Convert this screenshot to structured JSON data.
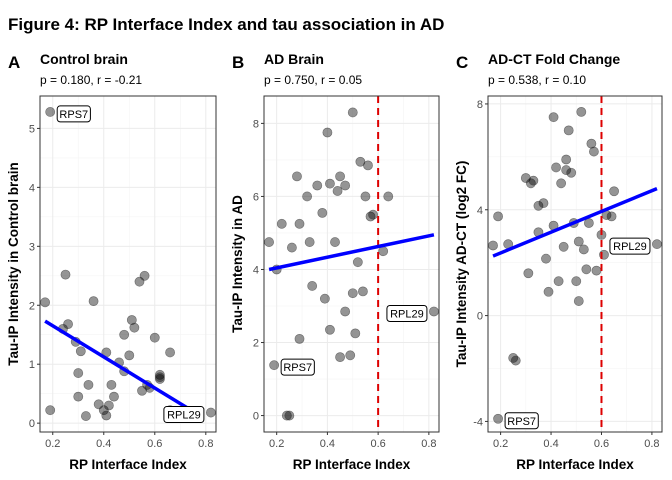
{
  "figure_title": "Figure 4: RP Interface Index and tau association in AD",
  "colors": {
    "point_fill": "#000000",
    "point_opacity": 0.42,
    "fit_line": "#0000ff",
    "threshold_line": "#dd0000",
    "grid": "#ebebeb",
    "panel_border": "#333333"
  },
  "chart_data": [
    {
      "type": "scatter",
      "letter": "A",
      "title": "Control brain",
      "subtitle": "p = 0.180, r = -0.21",
      "xlabel": "RP Interface Index",
      "ylabel": "Tau-IP Intensity in Control brain",
      "xlim": [
        0.15,
        0.84
      ],
      "ylim": [
        -0.15,
        5.55
      ],
      "xticks": [
        0.2,
        0.4,
        0.6,
        0.8
      ],
      "xtick_labels": [
        "0.2",
        "0.4",
        "0.6",
        "0.8"
      ],
      "yticks": [
        0,
        1,
        2,
        3,
        4,
        5
      ],
      "ytick_labels": [
        "0",
        "1",
        "2",
        "3",
        "4",
        "5"
      ],
      "threshold_x": null,
      "fit_line": {
        "x": [
          0.17,
          0.75
        ],
        "y": [
          1.73,
          0.2
        ]
      },
      "points": [
        {
          "x": 0.19,
          "y": 5.28
        },
        {
          "x": 0.17,
          "y": 2.05
        },
        {
          "x": 0.19,
          "y": 0.22
        },
        {
          "x": 0.25,
          "y": 2.52
        },
        {
          "x": 0.24,
          "y": 1.6
        },
        {
          "x": 0.26,
          "y": 1.68
        },
        {
          "x": 0.29,
          "y": 1.38
        },
        {
          "x": 0.3,
          "y": 0.85
        },
        {
          "x": 0.3,
          "y": 0.45
        },
        {
          "x": 0.31,
          "y": 1.22
        },
        {
          "x": 0.33,
          "y": 0.12
        },
        {
          "x": 0.34,
          "y": 0.65
        },
        {
          "x": 0.36,
          "y": 2.07
        },
        {
          "x": 0.38,
          "y": 0.32
        },
        {
          "x": 0.4,
          "y": 0.22
        },
        {
          "x": 0.41,
          "y": 0.13
        },
        {
          "x": 0.41,
          "y": 1.2
        },
        {
          "x": 0.42,
          "y": 0.3
        },
        {
          "x": 0.43,
          "y": 0.65
        },
        {
          "x": 0.44,
          "y": 0.45
        },
        {
          "x": 0.46,
          "y": 1.03
        },
        {
          "x": 0.48,
          "y": 1.5
        },
        {
          "x": 0.48,
          "y": 0.88
        },
        {
          "x": 0.5,
          "y": 1.15
        },
        {
          "x": 0.51,
          "y": 1.75
        },
        {
          "x": 0.52,
          "y": 1.62
        },
        {
          "x": 0.54,
          "y": 2.4
        },
        {
          "x": 0.55,
          "y": 0.55
        },
        {
          "x": 0.56,
          "y": 2.5
        },
        {
          "x": 0.57,
          "y": 0.65
        },
        {
          "x": 0.58,
          "y": 0.6
        },
        {
          "x": 0.6,
          "y": 1.45
        },
        {
          "x": 0.62,
          "y": 0.82
        },
        {
          "x": 0.62,
          "y": 0.75
        },
        {
          "x": 0.62,
          "y": 0.78
        },
        {
          "x": 0.66,
          "y": 0.22
        },
        {
          "x": 0.66,
          "y": 1.2
        },
        {
          "x": 0.82,
          "y": 0.18
        }
      ],
      "labels": [
        {
          "text": "RPS7",
          "x": 0.19,
          "y": 5.28,
          "side": "right"
        },
        {
          "text": "RPL29",
          "x": 0.82,
          "y": 0.18,
          "side": "left"
        }
      ]
    },
    {
      "type": "scatter",
      "letter": "B",
      "title": "AD Brain",
      "subtitle": "p = 0.750, r = 0.05",
      "xlabel": "RP Interface Index",
      "ylabel": "Tau-IP Intensity in AD",
      "xlim": [
        0.15,
        0.84
      ],
      "ylim": [
        -0.45,
        8.75
      ],
      "xticks": [
        0.2,
        0.4,
        0.6,
        0.8
      ],
      "xtick_labels": [
        "0.2",
        "0.4",
        "0.6",
        "0.8"
      ],
      "yticks": [
        0,
        2,
        4,
        6,
        8
      ],
      "ytick_labels": [
        "0",
        "2",
        "4",
        "6",
        "8"
      ],
      "threshold_x": 0.6,
      "fit_line": {
        "x": [
          0.17,
          0.82
        ],
        "y": [
          4.0,
          4.95
        ]
      },
      "points": [
        {
          "x": 0.17,
          "y": 4.75
        },
        {
          "x": 0.19,
          "y": 1.38
        },
        {
          "x": 0.2,
          "y": 4.0
        },
        {
          "x": 0.22,
          "y": 5.25
        },
        {
          "x": 0.24,
          "y": 0.0
        },
        {
          "x": 0.25,
          "y": 0.0
        },
        {
          "x": 0.26,
          "y": 4.6
        },
        {
          "x": 0.28,
          "y": 6.55
        },
        {
          "x": 0.29,
          "y": 5.25
        },
        {
          "x": 0.29,
          "y": 2.1
        },
        {
          "x": 0.32,
          "y": 6.0
        },
        {
          "x": 0.33,
          "y": 4.75
        },
        {
          "x": 0.34,
          "y": 3.55
        },
        {
          "x": 0.36,
          "y": 6.3
        },
        {
          "x": 0.38,
          "y": 5.55
        },
        {
          "x": 0.39,
          "y": 3.2
        },
        {
          "x": 0.4,
          "y": 7.75
        },
        {
          "x": 0.41,
          "y": 6.35
        },
        {
          "x": 0.41,
          "y": 2.35
        },
        {
          "x": 0.43,
          "y": 4.75
        },
        {
          "x": 0.44,
          "y": 6.15
        },
        {
          "x": 0.45,
          "y": 1.6
        },
        {
          "x": 0.45,
          "y": 6.55
        },
        {
          "x": 0.47,
          "y": 2.85
        },
        {
          "x": 0.47,
          "y": 6.3
        },
        {
          "x": 0.49,
          "y": 1.65
        },
        {
          "x": 0.5,
          "y": 3.35
        },
        {
          "x": 0.5,
          "y": 8.3
        },
        {
          "x": 0.51,
          "y": 2.25
        },
        {
          "x": 0.52,
          "y": 4.2
        },
        {
          "x": 0.53,
          "y": 6.95
        },
        {
          "x": 0.54,
          "y": 3.4
        },
        {
          "x": 0.55,
          "y": 6.0
        },
        {
          "x": 0.56,
          "y": 6.85
        },
        {
          "x": 0.57,
          "y": 5.45
        },
        {
          "x": 0.58,
          "y": 5.5
        },
        {
          "x": 0.62,
          "y": 4.5
        },
        {
          "x": 0.64,
          "y": 6.0
        },
        {
          "x": 0.82,
          "y": 2.85
        }
      ],
      "labels": [
        {
          "text": "RPS7",
          "x": 0.19,
          "y": 1.38,
          "side": "right"
        },
        {
          "text": "RPL29",
          "x": 0.82,
          "y": 2.85,
          "side": "left"
        }
      ]
    },
    {
      "type": "scatter",
      "letter": "C",
      "title": "AD-CT Fold Change",
      "subtitle": "p = 0.538, r = 0.10",
      "xlabel": "RP Interface Index",
      "ylabel": "Tau-IP Intensity AD-CT (log2 FC)",
      "xlim": [
        0.15,
        0.84
      ],
      "ylim": [
        -4.4,
        8.3
      ],
      "xticks": [
        0.2,
        0.4,
        0.6,
        0.8
      ],
      "xtick_labels": [
        "0.2",
        "0.4",
        "0.6",
        "0.8"
      ],
      "yticks": [
        -4,
        0,
        4,
        8
      ],
      "ytick_labels": [
        "-4",
        "0",
        "4",
        "8"
      ],
      "threshold_x": 0.6,
      "fit_line": {
        "x": [
          0.17,
          0.82
        ],
        "y": [
          2.25,
          4.8
        ]
      },
      "points": [
        {
          "x": 0.17,
          "y": 2.65
        },
        {
          "x": 0.19,
          "y": -3.9
        },
        {
          "x": 0.19,
          "y": 3.75
        },
        {
          "x": 0.23,
          "y": 2.7
        },
        {
          "x": 0.25,
          "y": -1.6
        },
        {
          "x": 0.26,
          "y": -1.7
        },
        {
          "x": 0.3,
          "y": 5.2
        },
        {
          "x": 0.31,
          "y": 1.6
        },
        {
          "x": 0.32,
          "y": 5.0
        },
        {
          "x": 0.33,
          "y": 5.1
        },
        {
          "x": 0.35,
          "y": 4.15
        },
        {
          "x": 0.35,
          "y": 3.15
        },
        {
          "x": 0.37,
          "y": 4.25
        },
        {
          "x": 0.38,
          "y": 2.15
        },
        {
          "x": 0.39,
          "y": 0.9
        },
        {
          "x": 0.41,
          "y": 7.5
        },
        {
          "x": 0.41,
          "y": 3.4
        },
        {
          "x": 0.42,
          "y": 5.6
        },
        {
          "x": 0.43,
          "y": 1.3
        },
        {
          "x": 0.44,
          "y": 5.0
        },
        {
          "x": 0.45,
          "y": 2.6
        },
        {
          "x": 0.46,
          "y": 5.5
        },
        {
          "x": 0.46,
          "y": 5.9
        },
        {
          "x": 0.47,
          "y": 7.0
        },
        {
          "x": 0.48,
          "y": 5.4
        },
        {
          "x": 0.49,
          "y": 3.5
        },
        {
          "x": 0.5,
          "y": 1.3
        },
        {
          "x": 0.51,
          "y": 0.55
        },
        {
          "x": 0.51,
          "y": 2.8
        },
        {
          "x": 0.52,
          "y": 7.7
        },
        {
          "x": 0.53,
          "y": 2.5
        },
        {
          "x": 0.54,
          "y": 1.75
        },
        {
          "x": 0.55,
          "y": 3.5
        },
        {
          "x": 0.56,
          "y": 6.5
        },
        {
          "x": 0.57,
          "y": 6.2
        },
        {
          "x": 0.58,
          "y": 1.7
        },
        {
          "x": 0.6,
          "y": 3.05
        },
        {
          "x": 0.61,
          "y": 2.3
        },
        {
          "x": 0.62,
          "y": 3.8
        },
        {
          "x": 0.64,
          "y": 3.75
        },
        {
          "x": 0.65,
          "y": 4.7
        },
        {
          "x": 0.82,
          "y": 2.7
        }
      ],
      "labels": [
        {
          "text": "RPS7",
          "x": 0.19,
          "y": -3.9,
          "side": "right"
        },
        {
          "text": "RPL29",
          "x": 0.82,
          "y": 2.7,
          "side": "left"
        }
      ]
    }
  ]
}
